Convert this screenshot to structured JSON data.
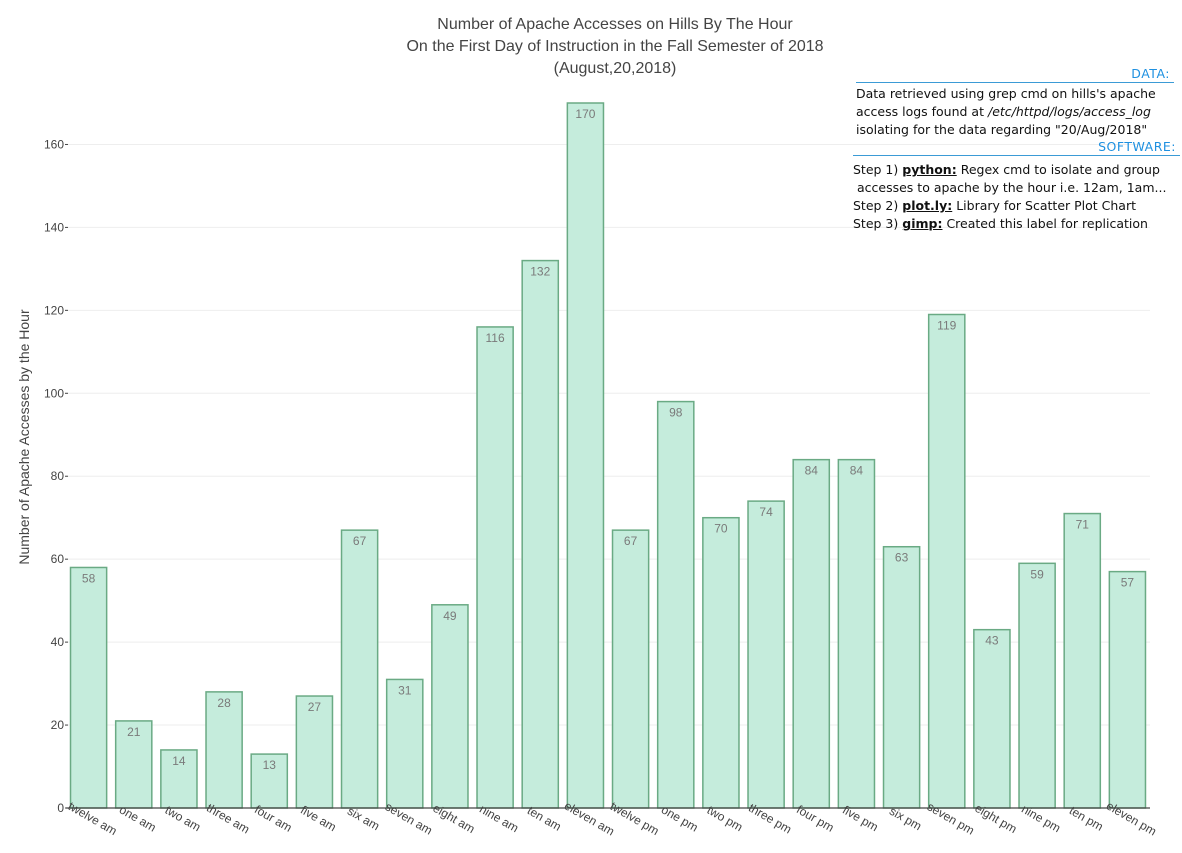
{
  "chart_data": {
    "type": "bar",
    "title_lines": [
      "Number of Apache Accesses on Hills By The Hour",
      "On the First Day of Instruction in the Fall Semester of 2018",
      "(August,20,2018)"
    ],
    "xlabel": "",
    "ylabel": "Number of Apache Accesses by the Hour",
    "ylim": [
      0,
      170
    ],
    "yticks": [
      0,
      20,
      40,
      60,
      80,
      100,
      120,
      140,
      160
    ],
    "grid": true,
    "categories": [
      "twelve am",
      "one am",
      "two am",
      "three am",
      "four am",
      "five am",
      "six am",
      "seven am",
      "eight am",
      "nine am",
      "ten am",
      "eleven am",
      "twelve pm",
      "one pm",
      "two pm",
      "three pm",
      "four pm",
      "five pm",
      "six pm",
      "seven pm",
      "eight pm",
      "nine pm",
      "ten pm",
      "eleven pm"
    ],
    "values": [
      58,
      21,
      14,
      28,
      13,
      27,
      67,
      31,
      49,
      116,
      132,
      170,
      67,
      98,
      70,
      74,
      84,
      84,
      63,
      119,
      43,
      59,
      71,
      57
    ],
    "data_labels": true,
    "colors": {
      "bar_fill": "#c5ecdc",
      "bar_stroke": "#6aaa84",
      "label": "#7a7a7a",
      "grid": "#eeeeee",
      "axis": "#444444"
    }
  },
  "annotation": {
    "data_header": "DATA:",
    "data_lines": [
      "Data retrieved using grep cmd on hills's apache",
      "access logs found  at",
      "/etc/httpd/logs/access_log",
      "isolating for the data regarding \"20/Aug/2018\""
    ],
    "software_header": "SOFTWARE:",
    "steps": [
      {
        "prefix": "Step 1) ",
        "tool": "python:",
        "text": " Regex cmd to isolate and group"
      },
      {
        "prefix": "",
        "tool": "",
        "text": "accesses to apache by the hour i.e. 12am, 1am..."
      },
      {
        "prefix": "Step 2) ",
        "tool": "plot.ly:",
        "text": " Library for Scatter Plot Chart"
      },
      {
        "prefix": "Step 3) ",
        "tool": "gimp:",
        "text": " Created this label for replication"
      }
    ],
    "colors": {
      "header": "#1e90e0"
    }
  }
}
